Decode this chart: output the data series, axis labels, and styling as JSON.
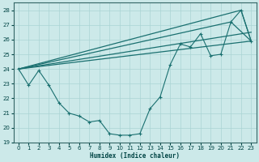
{
  "xlabel": "Humidex (Indice chaleur)",
  "ylabel": "",
  "xlim": [
    -0.5,
    23.5
  ],
  "ylim": [
    19,
    28.5
  ],
  "yticks": [
    19,
    20,
    21,
    22,
    23,
    24,
    25,
    26,
    27,
    28
  ],
  "xticks": [
    0,
    1,
    2,
    3,
    4,
    5,
    6,
    7,
    8,
    9,
    10,
    11,
    12,
    13,
    14,
    15,
    16,
    17,
    18,
    19,
    20,
    21,
    22,
    23
  ],
  "bg_color": "#cce9e9",
  "grid_color": "#aad4d4",
  "line_color": "#1a7070",
  "main_x": [
    0,
    1,
    2,
    3,
    4,
    5,
    6,
    7,
    8,
    9,
    10,
    11,
    12,
    13,
    14,
    15,
    16,
    17,
    18,
    19,
    20,
    21,
    22,
    23
  ],
  "main_y": [
    24.0,
    22.9,
    23.9,
    22.9,
    21.7,
    21.0,
    20.8,
    20.4,
    20.5,
    19.6,
    19.5,
    19.5,
    19.6,
    21.3,
    22.1,
    24.3,
    25.7,
    25.5,
    26.4,
    24.9,
    25.0,
    27.2,
    28.0,
    25.9
  ],
  "str_line1_x": [
    0,
    23
  ],
  "str_line1_y": [
    24.0,
    25.9
  ],
  "str_line2_x": [
    0,
    21,
    23
  ],
  "str_line2_y": [
    24.0,
    27.2,
    25.9
  ],
  "str_line3_x": [
    0,
    22,
    23
  ],
  "str_line3_y": [
    24.0,
    28.0,
    25.9
  ],
  "str_line4_x": [
    0,
    23
  ],
  "str_line4_y": [
    24.0,
    26.5
  ]
}
